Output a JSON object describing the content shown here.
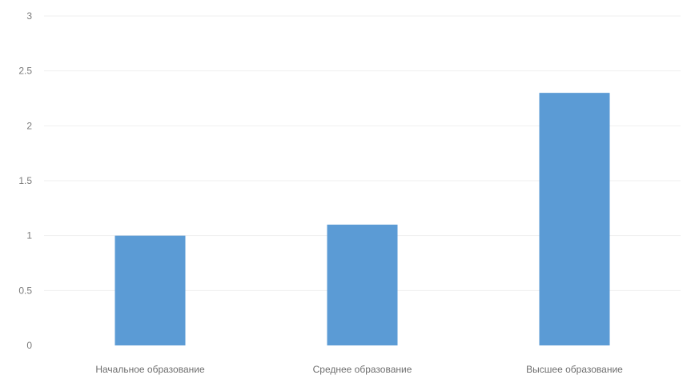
{
  "chart_data": {
    "type": "bar",
    "title": "",
    "xlabel": "",
    "ylabel": "",
    "categories": [
      "Начальное образование",
      "Среднее образование",
      "Высшее образование"
    ],
    "values": [
      1.0,
      1.1,
      2.3
    ],
    "ylim": [
      0,
      3
    ],
    "yticks": [
      "0",
      "0.5",
      "1",
      "1.5",
      "2",
      "2.5",
      "3"
    ],
    "grid": true,
    "legend": "none",
    "colors": {
      "bar": "#5b9bd5"
    }
  }
}
